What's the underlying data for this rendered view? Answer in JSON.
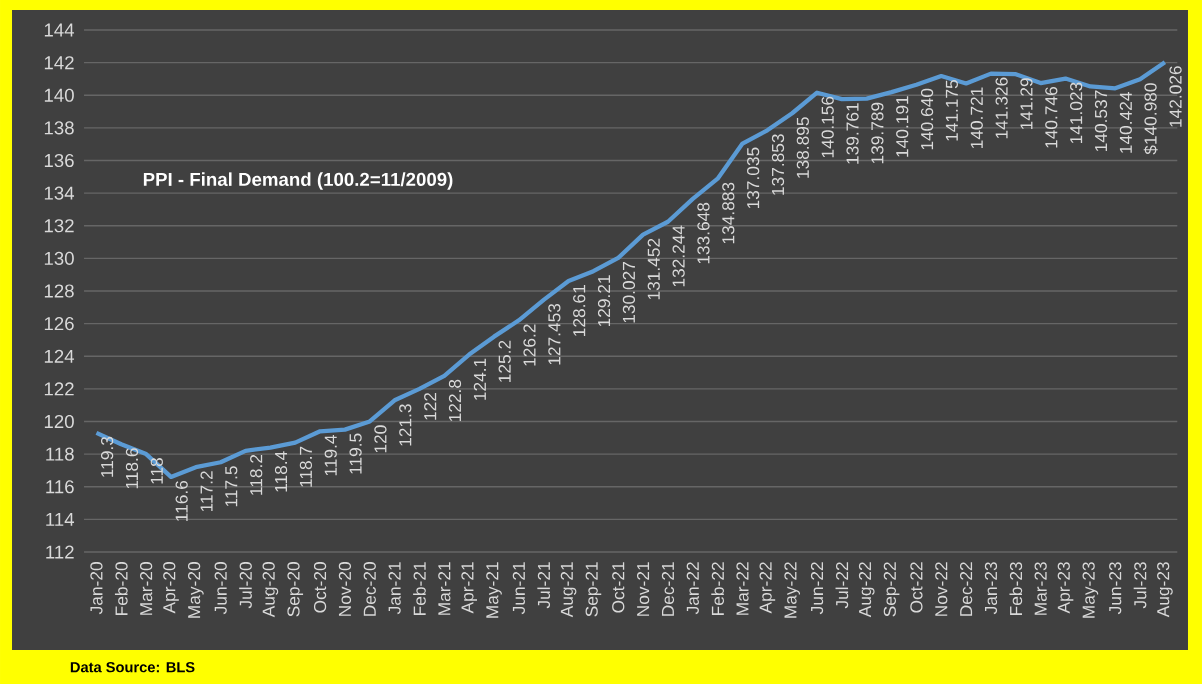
{
  "chart_data": {
    "type": "line",
    "title": "PPI - Final Demand (100.2=11/2009)",
    "categories": [
      "Jan-20",
      "Feb-20",
      "Mar-20",
      "Apr-20",
      "May-20",
      "Jun-20",
      "Jul-20",
      "Aug-20",
      "Sep-20",
      "Oct-20",
      "Nov-20",
      "Dec-20",
      "Jan-21",
      "Feb-21",
      "Mar-21",
      "Apr-21",
      "May-21",
      "Jun-21",
      "Jul-21",
      "Aug-21",
      "Sep-21",
      "Oct-21",
      "Nov-21",
      "Dec-21",
      "Jan-22",
      "Feb-22",
      "Mar-22",
      "Apr-22",
      "May-22",
      "Jun-22",
      "Jul-22",
      "Aug-22",
      "Sep-22",
      "Oct-22",
      "Nov-22",
      "Dec-22",
      "Jan-23",
      "Feb-23",
      "Mar-23",
      "Apr-23",
      "May-23",
      "Jun-23",
      "Jul-23",
      "Aug-23"
    ],
    "values": [
      119.3,
      118.6,
      118,
      116.6,
      117.2,
      117.5,
      118.2,
      118.4,
      118.7,
      119.4,
      119.5,
      120,
      121.3,
      122,
      122.8,
      124.1,
      125.2,
      126.2,
      127.453,
      128.61,
      129.21,
      130.027,
      131.452,
      132.244,
      133.648,
      134.883,
      137.035,
      137.853,
      138.895,
      140.156,
      139.761,
      139.789,
      140.191,
      140.64,
      141.175,
      140.721,
      141.326,
      141.29,
      140.746,
      141.023,
      140.537,
      140.424,
      140.98,
      142.026
    ],
    "value_labels": [
      "119.3",
      "118.6",
      "118",
      "116.6",
      "117.2",
      "117.5",
      "118.2",
      "118.4",
      "118.7",
      "119.4",
      "119.5",
      "120",
      "121.3",
      "122",
      "122.8",
      "124.1",
      "125.2",
      "126.2",
      "127.453",
      "128.61",
      "129.21",
      "130.027",
      "131.452",
      "132.244",
      "133.648",
      "134.883",
      "137.035",
      "137.853",
      "138.895",
      "140.156",
      "139.761",
      "139.789",
      "140.191",
      "140.640",
      "141.175",
      "140.721",
      "141.326",
      "141.29",
      "140.746",
      "141.023",
      "140.537",
      "140.424",
      "$140.980",
      "142.026"
    ],
    "color": "#5b9bd5",
    "ylim": [
      112,
      144
    ],
    "yticks": [
      112,
      114,
      116,
      118,
      120,
      122,
      124,
      126,
      128,
      130,
      132,
      134,
      136,
      138,
      140,
      142,
      144
    ],
    "grid": "y",
    "marker": "none",
    "line_style": "solid",
    "annotations": [
      "Data Source: BLS"
    ]
  }
}
